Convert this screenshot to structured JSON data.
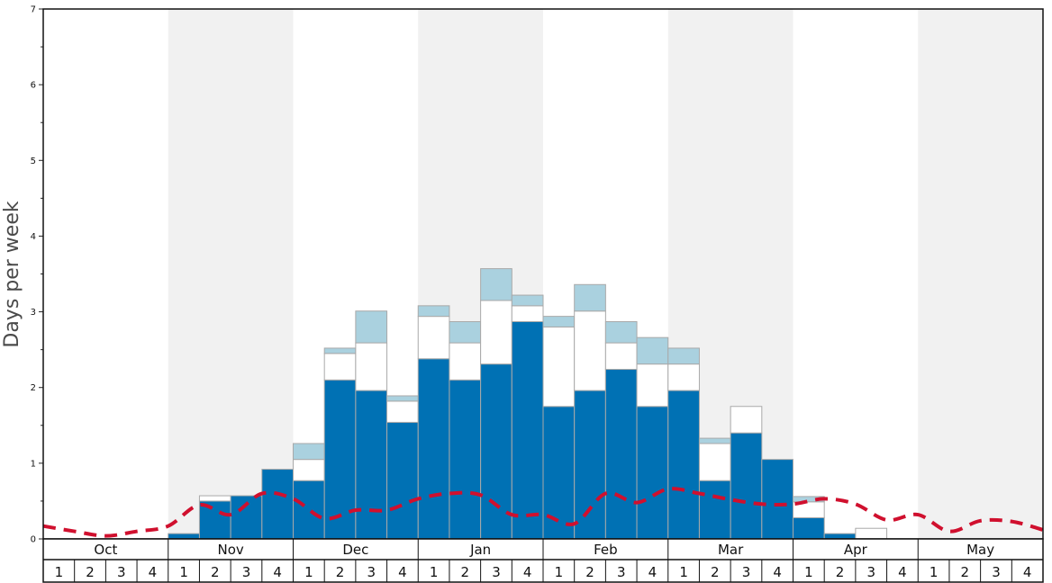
{
  "chart_data": {
    "type": "bar",
    "ylabel": "Days per week",
    "ylim": [
      0,
      7
    ],
    "y_ticks": [
      "0",
      "1",
      "2",
      "3",
      "4",
      "5",
      "6",
      "7"
    ],
    "months": [
      "Oct",
      "Nov",
      "Dec",
      "Jan",
      "Feb",
      "Mar",
      "Apr",
      "May"
    ],
    "weeks": [
      "1",
      "2",
      "3",
      "4"
    ],
    "shaded_months": [
      "Nov",
      "Jan",
      "Mar",
      "May"
    ],
    "colors": {
      "blue": "#0071b4",
      "white": "#ffffff",
      "light": "#aad1df",
      "dashed": "#d0102e",
      "shade": "#f1f1f1"
    },
    "series": [
      {
        "name": "",
        "color": "#0071b4",
        "values": [
          0,
          0,
          0,
          0,
          0.07,
          0.5,
          0.57,
          0.92,
          0.77,
          2.1,
          1.96,
          1.54,
          2.38,
          2.1,
          2.31,
          2.87,
          1.75,
          1.96,
          2.24,
          1.75,
          1.96,
          0.77,
          1.4,
          1.05,
          0.28,
          0.07,
          0,
          0,
          0,
          0,
          0,
          0
        ]
      },
      {
        "name": "",
        "color": "#ffffff",
        "values": [
          0,
          0,
          0,
          0,
          0,
          0.07,
          0,
          0,
          0.28,
          0.35,
          0.63,
          0.28,
          0.56,
          0.49,
          0.84,
          0.21,
          1.05,
          1.05,
          0.35,
          0.56,
          0.35,
          0.49,
          0.35,
          0,
          0.21,
          0,
          0.14,
          0,
          0,
          0,
          0,
          0
        ]
      },
      {
        "name": "",
        "color": "#aad1df",
        "values": [
          0,
          0,
          0,
          0,
          0,
          0,
          0,
          0,
          0.21,
          0.07,
          0.42,
          0.07,
          0.14,
          0.28,
          0.42,
          0.14,
          0.14,
          0.35,
          0.28,
          0.35,
          0.21,
          0.07,
          0,
          0,
          0.07,
          0,
          0,
          0,
          0,
          0,
          0,
          0
        ]
      },
      {
        "name": "",
        "type": "line",
        "style": "dashed",
        "color": "#d0102e",
        "values": [
          0.17,
          0.1,
          0.04,
          0.1,
          0.17,
          0.45,
          0.32,
          0.6,
          0.53,
          0.27,
          0.38,
          0.38,
          0.53,
          0.6,
          0.58,
          0.32,
          0.32,
          0.2,
          0.6,
          0.48,
          0.66,
          0.6,
          0.52,
          0.46,
          0.46,
          0.53,
          0.46,
          0.25,
          0.32,
          0.1,
          0.24,
          0.23,
          0.12
        ]
      }
    ]
  }
}
